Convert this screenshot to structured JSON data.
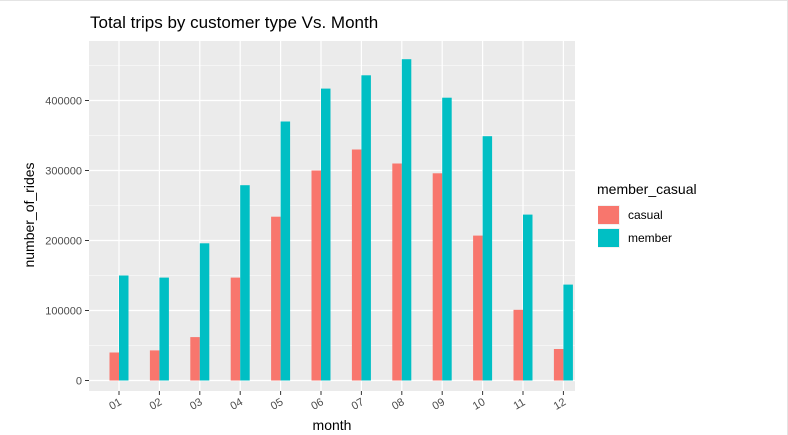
{
  "chart_data": {
    "type": "bar",
    "title": "Total trips by customer type Vs. Month",
    "xlabel": "month",
    "ylabel": "number_of_rides",
    "categories": [
      "01",
      "02",
      "03",
      "04",
      "05",
      "06",
      "07",
      "08",
      "09",
      "10",
      "11",
      "12"
    ],
    "series": [
      {
        "name": "casual",
        "color": "#F8766D",
        "values": [
          40000,
          43000,
          62000,
          147000,
          234000,
          300000,
          330000,
          310000,
          296000,
          207000,
          101000,
          45000
        ]
      },
      {
        "name": "member",
        "color": "#00BFC4",
        "values": [
          150000,
          147000,
          196000,
          279000,
          370000,
          417000,
          436000,
          459000,
          404000,
          349000,
          237000,
          137000
        ]
      }
    ],
    "yticks": [
      0,
      100000,
      200000,
      300000,
      400000
    ],
    "ylim": [
      -15000,
      485000
    ],
    "grid": true,
    "legend": {
      "title": "member_casual",
      "position": "right"
    },
    "panel_background": "#EBEBEB"
  }
}
